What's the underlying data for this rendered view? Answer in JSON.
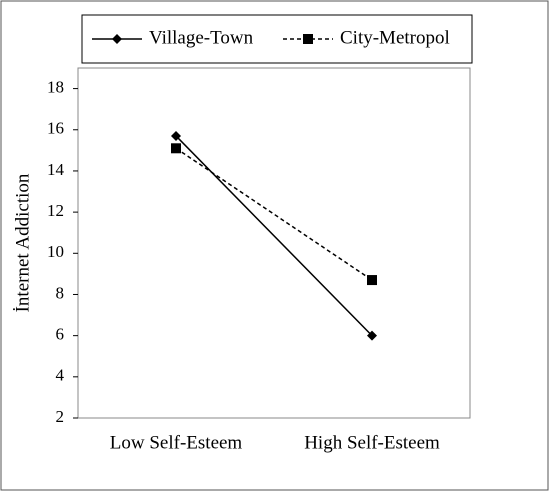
{
  "chart_data": {
    "type": "line",
    "y_label": "İnternet Addiction",
    "categories": [
      "Low Self-Esteem",
      "High Self-Esteem"
    ],
    "series": [
      {
        "name": "Village-Town",
        "color": "#000000",
        "line_style": "solid",
        "marker": "diamond",
        "values": [
          15.7,
          6.0
        ]
      },
      {
        "name": "City-Metropol",
        "color": "#000000",
        "line_style": "dashed",
        "marker": "square",
        "values": [
          15.1,
          8.7
        ]
      }
    ],
    "ylim": [
      2,
      19
    ],
    "yticks": [
      2,
      4,
      6,
      8,
      10,
      12,
      14,
      16,
      18
    ],
    "grid": false,
    "legend": "top"
  }
}
